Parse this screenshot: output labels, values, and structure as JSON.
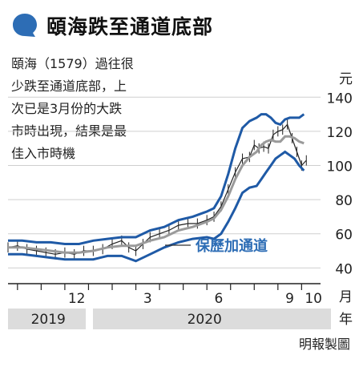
{
  "title": "頤海跌至通道底部",
  "caption_lines": [
    "頤海（1579）過往很",
    "少跌至通道底部，上",
    "次已是3月份的大跌",
    "市時出現，結果是最",
    "佳入市時機"
  ],
  "source": "明報製圖",
  "colors": {
    "accent": "#2d6db5",
    "band": "#1f5aa6",
    "ma": "#9a9a9a",
    "price": "#222222",
    "year_bar": "#dcdcdc"
  },
  "chart_data": {
    "type": "line",
    "y_unit": "元",
    "x_unit": "月",
    "year_unit": "年",
    "y_ticks": [
      40,
      60,
      80,
      100,
      120,
      140
    ],
    "ylim": [
      35,
      150
    ],
    "x_ticks": [
      {
        "label": "12",
        "t": 1.0
      },
      {
        "label": "3",
        "t": 4.0
      },
      {
        "label": "6",
        "t": 7.0
      },
      {
        "label": "9",
        "t": 10.0
      },
      {
        "label": "10",
        "t": 11.0
      }
    ],
    "years": [
      {
        "label": "2019",
        "from": -1.4,
        "to": 2.0
      },
      {
        "label": "2020",
        "from": 2.0,
        "to": 11.8
      }
    ],
    "xlim": [
      -1.4,
      11.8
    ],
    "annotation": "保歷加通道",
    "series": [
      {
        "role": "upper_band",
        "x": [
          -1.4,
          -0.8,
          -0.2,
          0.4,
          1.0,
          1.6,
          2.2,
          2.8,
          3.4,
          4.0,
          4.6,
          5.2,
          5.8,
          6.4,
          7.0,
          7.3,
          7.6,
          7.9,
          8.2,
          8.5,
          8.8,
          9.1,
          9.3,
          9.5,
          9.7,
          9.9,
          10.1,
          10.3,
          10.5,
          10.7,
          10.9,
          11.1
        ],
        "values": [
          56,
          56,
          55,
          55,
          54,
          54,
          56,
          57,
          58,
          58,
          62,
          64,
          68,
          70,
          73,
          75,
          82,
          95,
          110,
          122,
          126,
          128,
          130,
          130,
          128,
          125,
          124,
          127,
          128,
          128,
          128,
          130
        ]
      },
      {
        "role": "middle_ma",
        "x": [
          -1.4,
          -0.8,
          -0.2,
          0.4,
          1.0,
          1.6,
          2.2,
          2.8,
          3.4,
          4.0,
          4.6,
          5.2,
          5.8,
          6.4,
          7.0,
          7.3,
          7.6,
          7.9,
          8.2,
          8.5,
          8.8,
          9.1,
          9.3,
          9.5,
          9.7,
          9.9,
          10.1,
          10.3,
          10.5,
          10.7,
          10.9,
          11.1
        ],
        "values": [
          52,
          52,
          51,
          50,
          49,
          49,
          50,
          52,
          53,
          53,
          56,
          58,
          62,
          64,
          67,
          69,
          74,
          82,
          92,
          100,
          105,
          108,
          112,
          114,
          115,
          114,
          114,
          117,
          117,
          116,
          114,
          113
        ]
      },
      {
        "role": "lower_band",
        "x": [
          -1.4,
          -0.8,
          -0.2,
          0.4,
          1.0,
          1.6,
          2.2,
          2.8,
          3.4,
          4.0,
          4.6,
          5.2,
          5.8,
          6.4,
          7.0,
          7.3,
          7.6,
          7.9,
          8.2,
          8.5,
          8.8,
          9.1,
          9.3,
          9.5,
          9.7,
          9.9,
          10.1,
          10.3,
          10.5,
          10.7,
          10.9,
          11.1
        ],
        "values": [
          48,
          48,
          47,
          46,
          45,
          45,
          45,
          47,
          47,
          44,
          48,
          52,
          55,
          57,
          58,
          57,
          60,
          67,
          75,
          84,
          87,
          88,
          92,
          96,
          100,
          104,
          106,
          108,
          106,
          104,
          100,
          97
        ]
      },
      {
        "role": "price",
        "x": [
          -1.4,
          -1.0,
          -0.6,
          -0.2,
          0.2,
          0.6,
          1.0,
          1.4,
          1.8,
          2.2,
          2.6,
          3.0,
          3.4,
          3.7,
          4.0,
          4.3,
          4.6,
          5.0,
          5.4,
          5.8,
          6.2,
          6.6,
          7.0,
          7.3,
          7.6,
          7.9,
          8.2,
          8.5,
          8.8,
          9.0,
          9.2,
          9.4,
          9.6,
          9.8,
          10.0,
          10.2,
          10.4,
          10.6,
          10.8,
          11.0,
          11.2
        ],
        "values": [
          52,
          53,
          51,
          50,
          49,
          48,
          49,
          48,
          50,
          50,
          51,
          54,
          56,
          52,
          50,
          54,
          58,
          60,
          62,
          65,
          66,
          66,
          68,
          70,
          76,
          86,
          96,
          104,
          105,
          112,
          110,
          111,
          110,
          118,
          120,
          121,
          124,
          116,
          108,
          100,
          103
        ]
      }
    ]
  }
}
